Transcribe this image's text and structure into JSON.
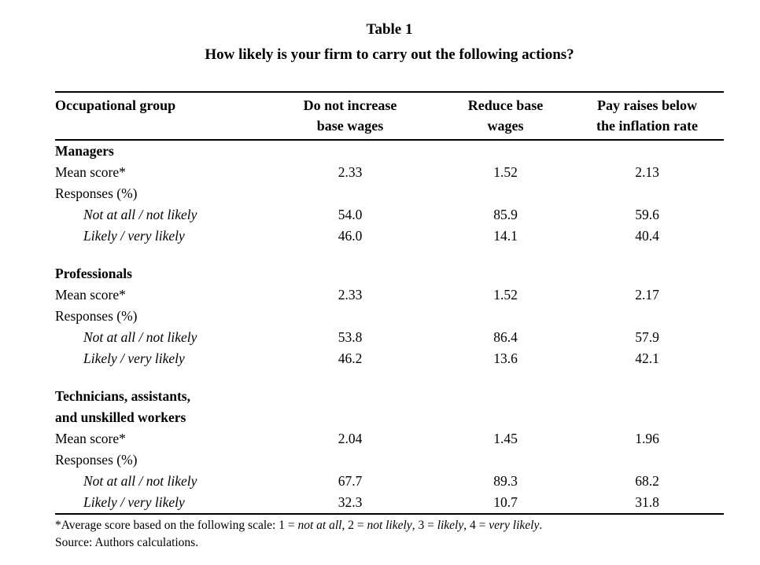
{
  "title": "Table 1",
  "subtitle": "How likely is your firm to carry out the following actions?",
  "table": {
    "columns": [
      {
        "label": "Occupational group"
      },
      {
        "line1": "Do not increase",
        "line2": "base wages"
      },
      {
        "line1": "Reduce base",
        "line2": "wages"
      },
      {
        "line1": "Pay raises below",
        "line2": "the inflation rate"
      }
    ],
    "groups": [
      {
        "name": "Managers",
        "mean_label": "Mean score*",
        "mean": [
          "2.33",
          "1.52",
          "2.13"
        ],
        "responses_label": "Responses (%)",
        "rows": [
          {
            "label": "Not at all / not likely",
            "values": [
              "54.0",
              "85.9",
              "59.6"
            ]
          },
          {
            "label": "Likely / very likely",
            "values": [
              "46.0",
              "14.1",
              "40.4"
            ]
          }
        ]
      },
      {
        "name": "Professionals",
        "mean_label": "Mean score*",
        "mean": [
          "2.33",
          "1.52",
          "2.17"
        ],
        "responses_label": "Responses (%)",
        "rows": [
          {
            "label": "Not at all / not likely",
            "values": [
              "53.8",
              "86.4",
              "57.9"
            ]
          },
          {
            "label": "Likely / very likely",
            "values": [
              "46.2",
              "13.6",
              "42.1"
            ]
          }
        ]
      },
      {
        "name": "Technicians, assistants,\nand unskilled workers",
        "mean_label": "Mean score*",
        "mean": [
          "2.04",
          "1.45",
          "1.96"
        ],
        "responses_label": "Responses (%)",
        "rows": [
          {
            "label": "Not at all / not likely",
            "values": [
              "67.7",
              "89.3",
              "68.2"
            ]
          },
          {
            "label": "Likely / very likely",
            "values": [
              "32.3",
              "10.7",
              "31.8"
            ]
          }
        ]
      }
    ]
  },
  "footnote": {
    "segments": [
      {
        "text": "*Average score based on the following scale: 1 = ",
        "italic": false
      },
      {
        "text": "not at all",
        "italic": true
      },
      {
        "text": ", 2 = ",
        "italic": false
      },
      {
        "text": "not likely",
        "italic": true
      },
      {
        "text": ", 3 = ",
        "italic": false
      },
      {
        "text": "likely",
        "italic": true
      },
      {
        "text": ", 4 = ",
        "italic": false
      },
      {
        "text": "very likely",
        "italic": true
      },
      {
        "text": ".",
        "italic": false
      }
    ]
  },
  "source": "Source: Authors calculations.",
  "colors": {
    "text": "#000000",
    "background": "#ffffff",
    "rule": "#000000"
  }
}
